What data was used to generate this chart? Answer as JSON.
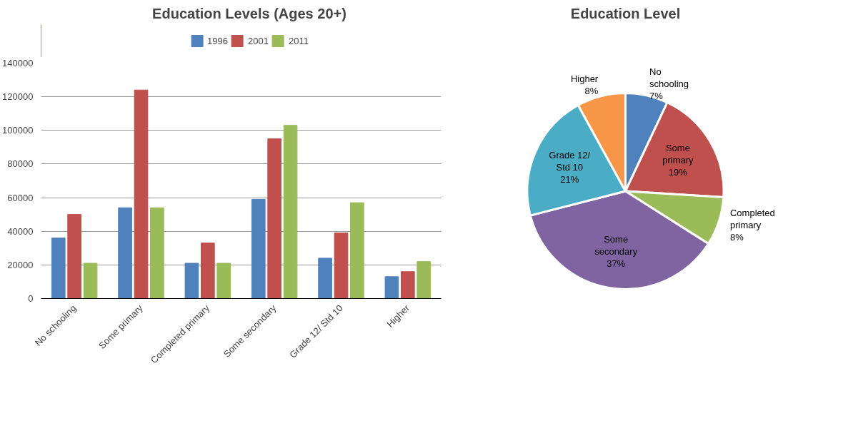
{
  "chart_data": [
    {
      "type": "bar",
      "title": "Education Levels (Ages 20+)",
      "categories": [
        "No schooling",
        "Some primary",
        "Completed primary",
        "Some secondary",
        "Grade 12/ Std 10",
        "Higher"
      ],
      "series": [
        {
          "name": "1996",
          "color": "#4f81bd",
          "values": [
            36000,
            54000,
            21000,
            59000,
            24000,
            13000
          ]
        },
        {
          "name": "2001",
          "color": "#c0504d",
          "values": [
            50000,
            124000,
            33000,
            95000,
            39000,
            16000
          ]
        },
        {
          "name": "2011",
          "color": "#9bbb59",
          "values": [
            21000,
            54000,
            21000,
            103000,
            57000,
            22000
          ]
        }
      ],
      "ylim": [
        0,
        140000
      ],
      "yticks": [
        0,
        20000,
        40000,
        60000,
        80000,
        100000,
        120000,
        140000
      ],
      "grid": "y",
      "legend": "top"
    },
    {
      "type": "pie",
      "title": "Education Level",
      "categories": [
        "No schooling",
        "Some primary",
        "Completed primary",
        "Some secondary",
        "Grade 12/ Std 10",
        "Higher"
      ],
      "values": [
        7,
        19,
        8,
        37,
        21,
        8
      ],
      "colors": [
        "#4f81bd",
        "#c0504d",
        "#9bbb59",
        "#8064a2",
        "#4bacc6",
        "#f79646"
      ],
      "value_labels": [
        "7%",
        "19%",
        "8%",
        "37%",
        "21%",
        "8%"
      ]
    }
  ]
}
